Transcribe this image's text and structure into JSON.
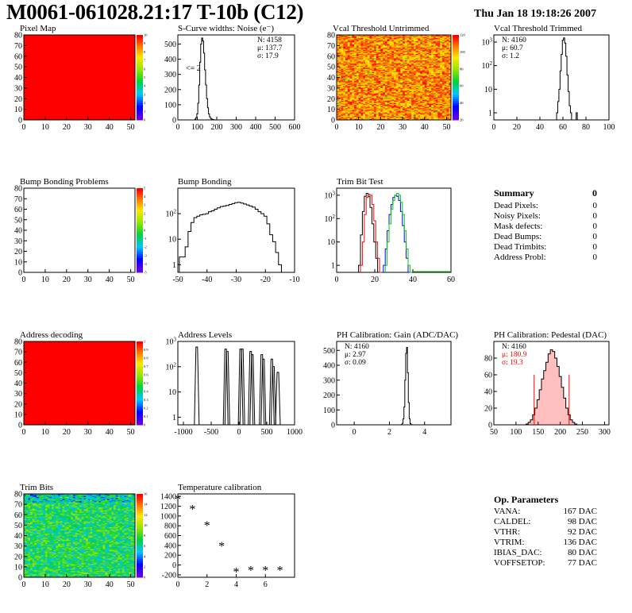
{
  "page": {
    "title": "M0061-061028.21:17 T-10b (C12)",
    "date": "Thu Jan 18 19:18:26 2007"
  },
  "colors": {
    "red": "#ff0000",
    "green": "#00c800",
    "blue": "#0000ff",
    "histo": "#000000",
    "pedestal_fill": "#ff0000"
  },
  "chart_data": [
    {
      "id": "pixel-map",
      "type": "heatmap",
      "title": "Pixel Map",
      "xlim": [
        0,
        52
      ],
      "ylim": [
        0,
        80
      ],
      "xticks": [
        "0",
        "10",
        "20",
        "30",
        "40",
        "50"
      ],
      "yticks": [
        "0",
        "10",
        "20",
        "30",
        "40",
        "50",
        "60",
        "70",
        "80"
      ],
      "palette_ticks": [
        "0",
        "1",
        "2",
        "3",
        "4",
        "5",
        "6",
        "7",
        "8",
        "9",
        "10"
      ],
      "uniform_color": "red"
    },
    {
      "id": "scurve-widths",
      "type": "histogram",
      "title": "S-Curve widths: Noise (e⁻)",
      "xlim": [
        0,
        600
      ],
      "ylim": [
        0,
        560
      ],
      "xticks": [
        "0",
        "100",
        "200",
        "300",
        "400",
        "500",
        "600"
      ],
      "yticks": [
        "0",
        "100",
        "200",
        "300",
        "400",
        "500"
      ],
      "stats": [
        "N: 4158",
        "μ: 137.7",
        "σ: 17.9"
      ],
      "annotation": "<= 2",
      "x": [
        90,
        95,
        100,
        105,
        110,
        115,
        120,
        125,
        130,
        135,
        140,
        145,
        150,
        155,
        160,
        165,
        170,
        175,
        180,
        185,
        190
      ],
      "values": [
        5,
        15,
        40,
        110,
        230,
        380,
        500,
        540,
        520,
        440,
        330,
        230,
        140,
        80,
        40,
        20,
        10,
        5,
        3,
        1,
        0
      ]
    },
    {
      "id": "vcal-untrimmed",
      "type": "heatmap",
      "title": "Vcal Threshold Untrimmed",
      "xlim": [
        0,
        52
      ],
      "ylim": [
        0,
        80
      ],
      "xticks": [
        "0",
        "10",
        "20",
        "30",
        "40",
        "50"
      ],
      "yticks": [
        "0",
        "10",
        "20",
        "30",
        "40",
        "50",
        "60",
        "70",
        "80"
      ],
      "palette_ticks": [
        "20",
        "40",
        "60",
        "80",
        "100",
        "120"
      ]
    },
    {
      "id": "vcal-trimmed",
      "type": "histogram",
      "title": "Vcal Threshold Trimmed",
      "log": true,
      "xlim": [
        0,
        100
      ],
      "ylim": [
        0.5,
        2000
      ],
      "xticks": [
        "0",
        "20",
        "40",
        "60",
        "80",
        "100"
      ],
      "yticks": [
        "1",
        "10",
        "10²",
        "10³"
      ],
      "stats": [
        "N: 4160",
        "μ: 60.7",
        "σ: 1.2"
      ],
      "x": [
        55,
        56,
        57,
        58,
        59,
        60,
        61,
        62,
        63,
        64,
        65,
        66,
        67,
        68,
        69,
        70,
        71,
        72,
        73
      ],
      "values": [
        1,
        3,
        10,
        60,
        300,
        1200,
        1500,
        900,
        250,
        40,
        8,
        2,
        1,
        0,
        0,
        0,
        0,
        1,
        0
      ]
    },
    {
      "id": "bump-bonding-problems",
      "type": "heatmap",
      "title": "Bump Bonding Problems",
      "xlim": [
        0,
        52
      ],
      "ylim": [
        0,
        80
      ],
      "xticks": [
        "0",
        "10",
        "20",
        "30",
        "40",
        "50"
      ],
      "yticks": [
        "0",
        "10",
        "20",
        "30",
        "40",
        "50",
        "60",
        "70",
        "80"
      ],
      "palette_ticks": [
        "-5",
        "-4",
        "-3",
        "-2",
        "-1",
        "0",
        "1",
        "2",
        "3",
        "4",
        "5"
      ],
      "uniform_color": "white"
    },
    {
      "id": "bump-bonding",
      "type": "histogram",
      "title": "Bump Bonding",
      "log": true,
      "xlim": [
        -50,
        -10
      ],
      "ylim": [
        0.5,
        1000
      ],
      "xticks": [
        "-50",
        "-40",
        "-30",
        "-20",
        "-10"
      ],
      "yticks": [
        "1",
        "10",
        "10²"
      ],
      "x": [
        -49,
        -48,
        -47,
        -46,
        -45,
        -44,
        -43,
        -42,
        -41,
        -40,
        -39,
        -38,
        -37,
        -36,
        -35,
        -34,
        -33,
        -32,
        -31,
        -30,
        -29,
        -28,
        -27,
        -26,
        -25,
        -24,
        -23,
        -22,
        -21,
        -20,
        -19,
        -18,
        -17,
        -16,
        -15,
        -14
      ],
      "values": [
        2,
        2,
        5,
        20,
        45,
        70,
        80,
        90,
        95,
        100,
        120,
        130,
        150,
        170,
        190,
        200,
        210,
        230,
        250,
        270,
        280,
        260,
        240,
        220,
        200,
        180,
        150,
        120,
        100,
        80,
        40,
        15,
        8,
        3,
        1,
        0
      ]
    },
    {
      "id": "trim-bit-test",
      "type": "histogram",
      "title": "Trim Bit Test",
      "log": true,
      "xlim": [
        0,
        60
      ],
      "ylim": [
        0.5,
        2000
      ],
      "xticks": [
        "0",
        "20",
        "40",
        "60"
      ],
      "yticks": [
        "1",
        "10",
        "10²",
        "10³"
      ],
      "series": [
        {
          "color": "black",
          "x": [
            12,
            13,
            14,
            15,
            16,
            17,
            18,
            19,
            20,
            21,
            22
          ],
          "values": [
            1,
            20,
            200,
            900,
            1200,
            900,
            300,
            60,
            10,
            2,
            0
          ]
        },
        {
          "color": "red",
          "x": [
            13,
            14,
            15,
            16,
            17,
            18,
            19,
            20,
            21,
            22,
            23
          ],
          "values": [
            1,
            10,
            150,
            800,
            1100,
            1000,
            400,
            80,
            10,
            2,
            0
          ]
        },
        {
          "color": "blue",
          "x": [
            25,
            26,
            27,
            28,
            29,
            30,
            31,
            32,
            33,
            34,
            35,
            36,
            37,
            38
          ],
          "values": [
            1,
            5,
            30,
            150,
            400,
            800,
            1000,
            900,
            600,
            200,
            50,
            10,
            2,
            0
          ]
        },
        {
          "color": "green",
          "x": [
            26,
            27,
            28,
            29,
            30,
            31,
            32,
            33,
            34,
            35,
            36,
            37,
            38,
            39
          ],
          "values": [
            1,
            10,
            60,
            250,
            600,
            1000,
            1200,
            1000,
            500,
            150,
            30,
            5,
            1,
            0
          ]
        }
      ]
    },
    {
      "id": "address-decoding",
      "type": "heatmap",
      "title": "Address decoding",
      "xlim": [
        0,
        52
      ],
      "ylim": [
        0,
        80
      ],
      "xticks": [
        "0",
        "10",
        "20",
        "30",
        "40",
        "50"
      ],
      "yticks": [
        "0",
        "10",
        "20",
        "30",
        "40",
        "50",
        "60",
        "70",
        "80"
      ],
      "palette_ticks": [
        "0",
        "0.1",
        "0.2",
        "0.3",
        "0.4",
        "0.5",
        "0.6",
        "0.7",
        "0.8",
        "0.9",
        "1"
      ],
      "uniform_color": "red"
    },
    {
      "id": "address-levels",
      "type": "histogram",
      "title": "Address Levels",
      "log": true,
      "xlim": [
        -1100,
        1000
      ],
      "ylim": [
        0.5,
        1000
      ],
      "xticks": [
        "-1000",
        "-500",
        "0",
        "500",
        "1000"
      ],
      "yticks": [
        "1",
        "10",
        "10²",
        "10³"
      ],
      "peaks": [
        -760,
        -240,
        -210,
        30,
        60,
        210,
        240,
        410,
        440,
        590,
        620,
        700
      ],
      "peak_heights": [
        600,
        500,
        400,
        500,
        500,
        400,
        300,
        300,
        200,
        200,
        100,
        60
      ]
    },
    {
      "id": "ph-gain",
      "type": "histogram",
      "title": "PH Calibration: Gain (ADC/DAC)",
      "xlim": [
        -1,
        5.5
      ],
      "ylim": [
        0,
        560
      ],
      "xticks": [
        "0",
        "2",
        "4"
      ],
      "yticks": [
        "0",
        "100",
        "200",
        "300",
        "400",
        "500"
      ],
      "stats": [
        "N: 4160",
        "μ: 2.97",
        "σ: 0.09"
      ],
      "x": [
        2.7,
        2.75,
        2.8,
        2.85,
        2.9,
        2.95,
        3.0,
        3.05,
        3.1,
        3.15,
        3.2,
        3.25
      ],
      "values": [
        2,
        10,
        40,
        120,
        300,
        480,
        520,
        350,
        150,
        40,
        8,
        1
      ]
    },
    {
      "id": "ph-pedestal",
      "type": "histogram",
      "title": "PH Calibration: Pedestal (DAC)",
      "xlim": [
        50,
        310
      ],
      "ylim": [
        0,
        100
      ],
      "xticks": [
        "50",
        "100",
        "150",
        "200",
        "250",
        "300"
      ],
      "yticks": [
        "0",
        "20",
        "40",
        "60",
        "80"
      ],
      "stats": [
        "N: 4160",
        "μ: 180.9",
        "σ: 19.3"
      ],
      "fit_lines": [
        141,
        220
      ],
      "x": [
        125,
        130,
        135,
        140,
        145,
        150,
        155,
        160,
        165,
        170,
        175,
        180,
        185,
        190,
        195,
        200,
        205,
        210,
        215,
        220,
        225,
        230,
        235,
        240
      ],
      "values": [
        1,
        3,
        6,
        12,
        20,
        30,
        42,
        55,
        65,
        75,
        85,
        90,
        88,
        80,
        70,
        58,
        45,
        32,
        20,
        12,
        6,
        3,
        1,
        0
      ]
    },
    {
      "id": "trim-bits",
      "type": "heatmap",
      "title": "Trim Bits",
      "xlim": [
        0,
        52
      ],
      "ylim": [
        0,
        80
      ],
      "xticks": [
        "0",
        "10",
        "20",
        "30",
        "40",
        "50"
      ],
      "yticks": [
        "0",
        "10",
        "20",
        "30",
        "40",
        "50",
        "60",
        "70",
        "80"
      ],
      "palette_ticks": [
        "0",
        "2",
        "4",
        "6",
        "8",
        "10",
        "12",
        "14",
        "16"
      ]
    },
    {
      "id": "temperature-calibration",
      "type": "scatter",
      "title": "Temperature calibration",
      "xlim": [
        0,
        8
      ],
      "ylim": [
        -250,
        1450
      ],
      "xticks": [
        "0",
        "2",
        "4",
        "6"
      ],
      "yticks": [
        "-200",
        "0",
        "200",
        "400",
        "600",
        "800",
        "1000",
        "1200",
        "1400"
      ],
      "x": [
        0,
        1,
        2,
        3,
        4,
        5,
        6,
        7
      ],
      "values": [
        1350,
        1150,
        820,
        400,
        -130,
        -100,
        -100,
        -100
      ]
    }
  ],
  "summary": {
    "title": "Summary",
    "value": "0",
    "rows": [
      {
        "label": "Dead Pixels:",
        "value": "0"
      },
      {
        "label": "Noisy Pixels:",
        "value": "0"
      },
      {
        "label": "Mask defects:",
        "value": "0"
      },
      {
        "label": "Dead Bumps:",
        "value": "0"
      },
      {
        "label": "Dead Trimbits:",
        "value": "0"
      },
      {
        "label": "Address Probl:",
        "value": "0"
      }
    ]
  },
  "op_params": {
    "title": "Op. Parameters",
    "rows": [
      {
        "label": "VANA:",
        "value": "167 DAC"
      },
      {
        "label": "CALDEL:",
        "value": "98 DAC"
      },
      {
        "label": "VTHR:",
        "value": "92 DAC"
      },
      {
        "label": "VTRIM:",
        "value": "136 DAC"
      },
      {
        "label": "IBIAS_DAC:",
        "value": "80 DAC"
      },
      {
        "label": "VOFFSETOP:",
        "value": "77 DAC"
      }
    ]
  }
}
